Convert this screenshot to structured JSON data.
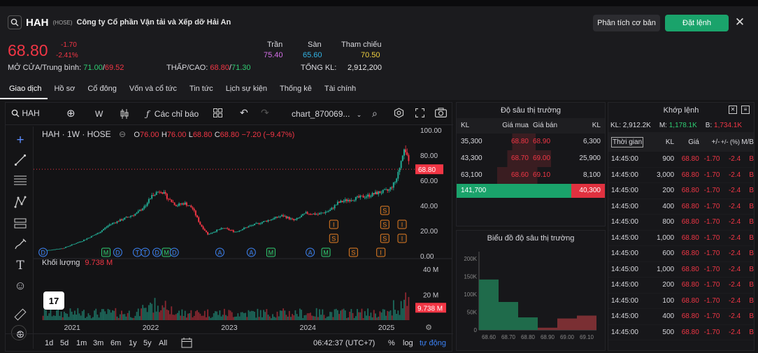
{
  "header": {
    "symbol": "HAH",
    "exchange": "(HOSE)",
    "company": "Công ty Cổ phần Vận tải và Xếp dỡ Hải An",
    "analysis_button": "Phân tích cơ bản",
    "order_button": "Đặt lệnh",
    "close_icon": "close-icon"
  },
  "quote": {
    "price": "68.80",
    "change": "-1.70",
    "change_pct": "-2.41%",
    "open_avg_label": "MỞ CỬA/Trung bình:",
    "open": "71.00",
    "avg": "69.52",
    "ceiling_label": "Trần",
    "ceiling": "75.40",
    "floor_label": "Sàn",
    "floor": "65.60",
    "ref_label": "Tham chiếu",
    "ref": "70.50",
    "lowhigh_label": "THẤP/CAO:",
    "low": "68.80",
    "high": "71.30",
    "vol_label": "TỔNG KL:",
    "vol": "2,912,200",
    "slash": "/"
  },
  "tabs": [
    "Giao dịch",
    "Hồ sơ",
    "Cổ đông",
    "Vốn và cổ tức",
    "Tin tức",
    "Lịch sự kiện",
    "Thống kê",
    "Tài chính"
  ],
  "chart_toolbar": {
    "symbol": "HAH",
    "interval": "W",
    "indicators": "Các chỉ báo",
    "chart_name": "chart_870069..."
  },
  "chart_legend": {
    "title": "HAH · 1W · HOSE",
    "o_label": "O",
    "o": "76.00",
    "h_label": "H",
    "h": "76.00",
    "l_label": "L",
    "l": "68.80",
    "c_label": "C",
    "c": "68.80",
    "chg": "−7.20 (−9.47%)",
    "vol_label": "Khối lượng",
    "vol": "9.738 M"
  },
  "chart_data": {
    "type": "candlestick",
    "x_ticks": [
      "2021",
      "2022",
      "2023",
      "2024",
      "2025"
    ],
    "price_ticks": [
      "100.00",
      "80.00",
      "60.00",
      "40.00",
      "20.00",
      "0.00"
    ],
    "price_ylim": [
      0,
      100
    ],
    "volume_ticks": [
      "40 M",
      "20 M"
    ],
    "last_price_label": "68.80",
    "last_volume_label": "9.738 M",
    "price_path": [
      [
        2020.75,
        4
      ],
      [
        2021.0,
        6
      ],
      [
        2021.25,
        12
      ],
      [
        2021.45,
        18
      ],
      [
        2021.6,
        25
      ],
      [
        2021.8,
        30
      ],
      [
        2021.95,
        34
      ],
      [
        2022.05,
        40
      ],
      [
        2022.15,
        49
      ],
      [
        2022.25,
        52
      ],
      [
        2022.35,
        45
      ],
      [
        2022.45,
        40
      ],
      [
        2022.55,
        42
      ],
      [
        2022.65,
        38
      ],
      [
        2022.75,
        25
      ],
      [
        2022.85,
        17
      ],
      [
        2022.95,
        20
      ],
      [
        2023.05,
        22
      ],
      [
        2023.2,
        19
      ],
      [
        2023.35,
        23
      ],
      [
        2023.5,
        26
      ],
      [
        2023.65,
        29
      ],
      [
        2023.8,
        32
      ],
      [
        2023.95,
        28
      ],
      [
        2024.1,
        34
      ],
      [
        2024.25,
        33
      ],
      [
        2024.4,
        36
      ],
      [
        2024.5,
        42
      ],
      [
        2024.6,
        44
      ],
      [
        2024.75,
        46
      ],
      [
        2024.9,
        48
      ],
      [
        2025.0,
        50
      ],
      [
        2025.15,
        52
      ],
      [
        2025.25,
        60
      ],
      [
        2025.35,
        88
      ],
      [
        2025.42,
        68.8
      ]
    ],
    "event_markers": [
      "D",
      "M",
      "D",
      "T",
      "T",
      "D",
      "M",
      "D",
      "A",
      "A",
      "M",
      "A",
      "M",
      "S",
      "I"
    ]
  },
  "chart_bottom": {
    "ranges": [
      "1d",
      "5d",
      "1m",
      "3m",
      "6m",
      "1y",
      "5y",
      "All"
    ],
    "time": "06:42:37 (UTC+7)",
    "pct": "%",
    "log": "log",
    "auto": "tự động"
  },
  "depth": {
    "title": "Độ sâu thị trường",
    "headers": [
      "KL",
      "Giá mua",
      "Giá bán",
      "KL"
    ],
    "rows": [
      {
        "buy_vol": "35,300",
        "bid": "68.80",
        "ask": "68.90",
        "sell_vol": "6,300"
      },
      {
        "buy_vol": "43,300",
        "bid": "68.70",
        "ask": "69.00",
        "sell_vol": "25,900"
      },
      {
        "buy_vol": "63,100",
        "bid": "68.60",
        "ask": "69.10",
        "sell_vol": "8,100"
      }
    ],
    "total_buy": "141,700",
    "total_sell": "40,300"
  },
  "depth_chart": {
    "title": "Biểu đồ độ sâu thị trường",
    "y_ticks": [
      "200K",
      "150K",
      "100K",
      "50K",
      "0"
    ],
    "x_ticks": [
      "68.60",
      "68.70",
      "68.80",
      "68.90",
      "69.00",
      "69.10"
    ],
    "buy_cumulative": [
      141700,
      78600,
      35300
    ],
    "sell_cumulative": [
      6300,
      32200,
      40300
    ],
    "buy_color": "#1f6b4b",
    "sell_color": "#7a2f33"
  },
  "trades": {
    "title": "Khớp lệnh",
    "kl_label": "KL:",
    "kl": "2,912.2K",
    "m_label": "M:",
    "m": "1,178.1K",
    "b_label": "B:",
    "b": "1,734.1K",
    "headers": [
      "Thời gian",
      "KL",
      "Giá",
      "+/-",
      "+/- (%)",
      "M/B"
    ],
    "rows": [
      {
        "time": "14:45:00",
        "vol": "900",
        "price": "68.80",
        "chg": "-1.70",
        "pct": "-2.4",
        "side": "B"
      },
      {
        "time": "14:45:00",
        "vol": "3,000",
        "price": "68.80",
        "chg": "-1.70",
        "pct": "-2.4",
        "side": "B"
      },
      {
        "time": "14:45:00",
        "vol": "200",
        "price": "68.80",
        "chg": "-1.70",
        "pct": "-2.4",
        "side": "B"
      },
      {
        "time": "14:45:00",
        "vol": "400",
        "price": "68.80",
        "chg": "-1.70",
        "pct": "-2.4",
        "side": "B"
      },
      {
        "time": "14:45:00",
        "vol": "800",
        "price": "68.80",
        "chg": "-1.70",
        "pct": "-2.4",
        "side": "B"
      },
      {
        "time": "14:45:00",
        "vol": "1,000",
        "price": "68.80",
        "chg": "-1.70",
        "pct": "-2.4",
        "side": "B"
      },
      {
        "time": "14:45:00",
        "vol": "600",
        "price": "68.80",
        "chg": "-1.70",
        "pct": "-2.4",
        "side": "B"
      },
      {
        "time": "14:45:00",
        "vol": "1,000",
        "price": "68.80",
        "chg": "-1.70",
        "pct": "-2.4",
        "side": "B"
      },
      {
        "time": "14:45:00",
        "vol": "200",
        "price": "68.80",
        "chg": "-1.70",
        "pct": "-2.4",
        "side": "B"
      },
      {
        "time": "14:45:00",
        "vol": "100",
        "price": "68.80",
        "chg": "-1.70",
        "pct": "-2.4",
        "side": "B"
      },
      {
        "time": "14:45:00",
        "vol": "400",
        "price": "68.80",
        "chg": "-1.70",
        "pct": "-2.4",
        "side": "B"
      },
      {
        "time": "14:45:00",
        "vol": "500",
        "price": "68.80",
        "chg": "-1.70",
        "pct": "-2.4",
        "side": "B"
      }
    ]
  }
}
